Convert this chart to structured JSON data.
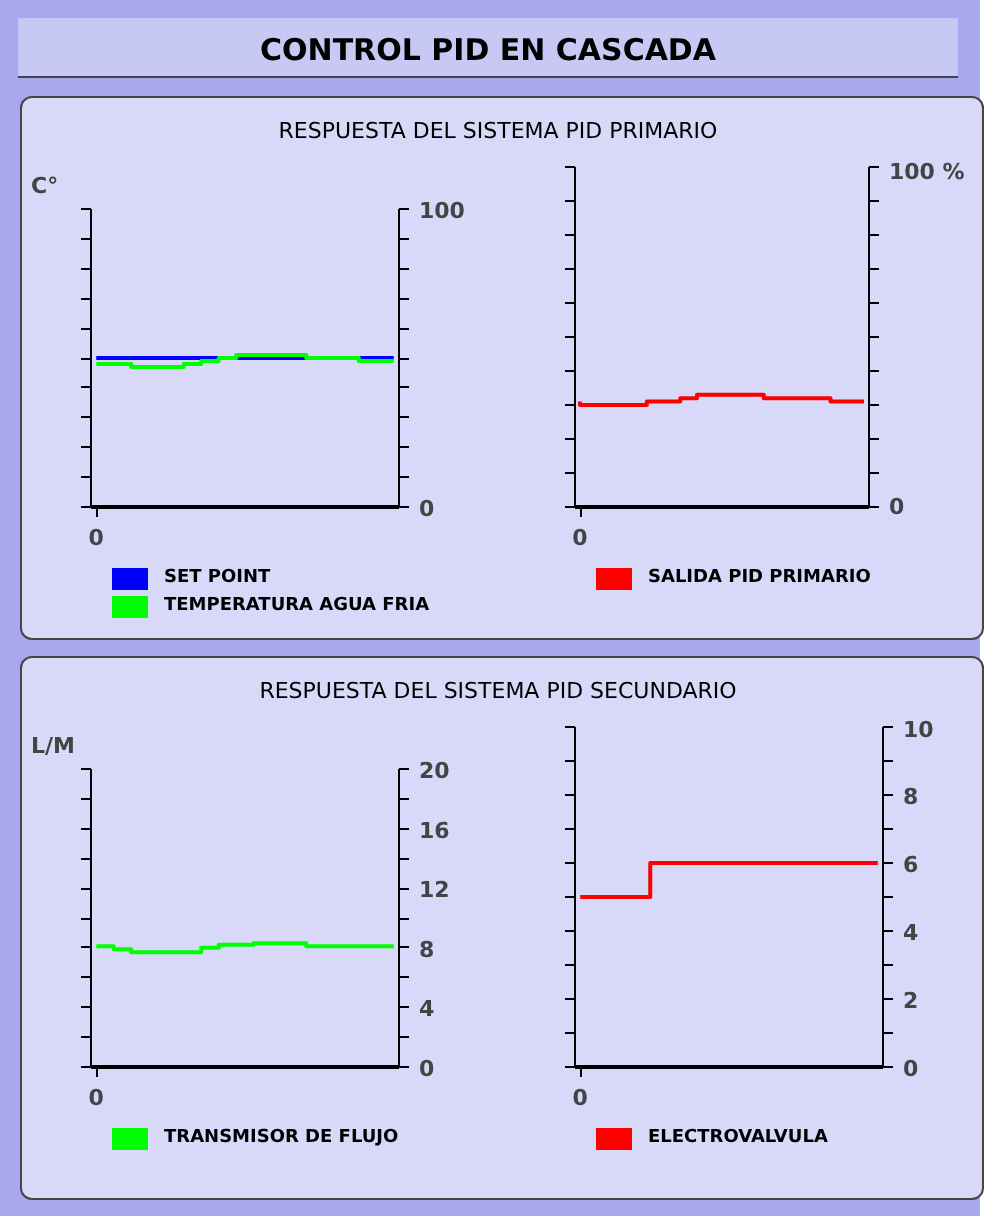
{
  "chart_data": [
    {
      "type": "other",
      "title": "CONTROL PID EN CASCADA"
    },
    {
      "type": "step",
      "title": "RESPUESTA DEL SISTEMA PID PRIMARIO",
      "ylabel": "C°",
      "categories": [
        null,
        null,
        null,
        null,
        null,
        null,
        null,
        null,
        null,
        null,
        null,
        null,
        null,
        null,
        null,
        null,
        null,
        null
      ],
      "series": [
        {
          "name": "SET POINT",
          "color": "#0000ff",
          "type": "line",
          "values": [
            50,
            50,
            50,
            50,
            50,
            50,
            50,
            50,
            50,
            50,
            50,
            50,
            50,
            50,
            50,
            50,
            50,
            50
          ]
        },
        {
          "name": "TEMPERATURA AGUA FRIA",
          "color": "#00ff00",
          "values": [
            48,
            48,
            48,
            47,
            47,
            47,
            48,
            49,
            50,
            51,
            51,
            51,
            51,
            50,
            50,
            50,
            49,
            49
          ]
        }
      ],
      "ylim": [
        0,
        100
      ],
      "yticks": [
        0,
        {
          "value": 10,
          "label": null
        },
        {
          "value": 20,
          "label": null
        },
        {
          "value": 30,
          "label": null
        },
        {
          "value": 40,
          "label": null
        },
        {
          "value": 50,
          "label": null
        },
        {
          "value": 60,
          "label": null
        },
        {
          "value": 70,
          "label": null
        },
        {
          "value": 80,
          "label": null
        },
        {
          "value": 90,
          "label": null
        },
        100
      ],
      "annotations": [
        "0"
      ],
      "legend": "bottom",
      "grid": false
    },
    {
      "type": "step",
      "categories": [
        null,
        null,
        null,
        null,
        null,
        null,
        null,
        null,
        null,
        null,
        null,
        null,
        null,
        null,
        null,
        null,
        null,
        null
      ],
      "series": [
        {
          "name": "SALIDA PID PRIMARIO",
          "color": "#ff0000",
          "values": [
            31,
            30,
            30,
            30,
            30,
            31,
            31,
            32,
            33,
            33,
            33,
            33,
            32,
            32,
            32,
            32,
            31,
            31
          ]
        }
      ],
      "ylim": [
        0,
        100
      ],
      "yticks": [
        0,
        {
          "value": 10,
          "label": null
        },
        {
          "value": 20,
          "label": null
        },
        {
          "value": 30,
          "label": null
        },
        {
          "value": 40,
          "label": null
        },
        {
          "value": 50,
          "label": null
        },
        {
          "value": 60,
          "label": null
        },
        {
          "value": 70,
          "label": null
        },
        {
          "value": 80,
          "label": null
        },
        {
          "value": 90,
          "label": null
        },
        {
          "value": 100,
          "label": "100 %"
        }
      ],
      "annotations": [
        "0"
      ],
      "legend": "bottom",
      "grid": false
    },
    {
      "type": "step",
      "title": "RESPUESTA DEL SISTEMA PID SECUNDARIO",
      "ylabel": "L/M",
      "categories": [
        null,
        null,
        null,
        null,
        null,
        null,
        null,
        null,
        null,
        null,
        null,
        null,
        null,
        null,
        null,
        null,
        null,
        null
      ],
      "series": [
        {
          "name": "TRANSMISOR DE FLUJO",
          "color": "#00ff00",
          "values": [
            8.1,
            8.1,
            7.9,
            7.7,
            7.7,
            7.7,
            7.7,
            8,
            8.2,
            8.2,
            8.3,
            8.3,
            8.3,
            8.1,
            8.1,
            8.1,
            8.1,
            8.1
          ]
        }
      ],
      "ylim": [
        0,
        20
      ],
      "yticks": [
        0,
        {
          "value": 2,
          "label": null
        },
        4,
        {
          "value": 6,
          "label": null
        },
        8,
        {
          "value": 10,
          "label": null
        },
        12,
        {
          "value": 14,
          "label": null
        },
        16,
        {
          "value": 18,
          "label": null
        },
        20
      ],
      "annotations": [
        "0"
      ],
      "legend": "bottom",
      "grid": false
    },
    {
      "type": "step",
      "categories": [
        null,
        null,
        null,
        null,
        null,
        null,
        null,
        null,
        null,
        null,
        null,
        null,
        null,
        null,
        null,
        null,
        null,
        null
      ],
      "series": [
        {
          "name": "ELECTROVALVULA",
          "color": "#ff0000",
          "values": [
            5,
            5,
            5,
            5,
            5,
            6,
            6,
            6,
            6,
            6,
            6,
            6,
            6,
            6,
            6,
            6,
            6,
            6
          ]
        }
      ],
      "ylim": [
        0,
        10
      ],
      "yticks": [
        0,
        {
          "value": 1,
          "label": null
        },
        2,
        {
          "value": 3,
          "label": null
        },
        4,
        {
          "value": 5,
          "label": null
        },
        6,
        {
          "value": 7,
          "label": null
        },
        8,
        {
          "value": 9,
          "label": null
        },
        10
      ],
      "annotations": [
        "0"
      ],
      "legend": "bottom",
      "grid": false
    }
  ]
}
